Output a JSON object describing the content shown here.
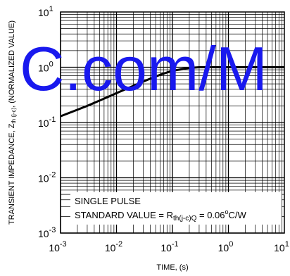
{
  "chart_data": {
    "type": "line",
    "x_scale": "log",
    "y_scale": "log",
    "xlim": [
      0.001,
      10
    ],
    "ylim": [
      0.001,
      10
    ],
    "grid": true,
    "xlabel": "TIME, (s)",
    "ylabel_parts": {
      "prefix": "TRANSIENT  IMPEDANCE, Z",
      "subscript": "th (j-c)",
      "suffix": ", (NORMALIZED VALUE)"
    },
    "x_ticks": [
      {
        "value": 0.001,
        "base": "10",
        "exp": "-3"
      },
      {
        "value": 0.01,
        "base": "10",
        "exp": "-2"
      },
      {
        "value": 0.1,
        "base": "10",
        "exp": "-1"
      },
      {
        "value": 1,
        "base": "10",
        "exp": "0"
      },
      {
        "value": 10,
        "base": "10",
        "exp": "1"
      }
    ],
    "y_ticks": [
      {
        "value": 0.001,
        "base": "10",
        "exp": "-3"
      },
      {
        "value": 0.01,
        "base": "10",
        "exp": "-2"
      },
      {
        "value": 0.1,
        "base": "10",
        "exp": "-1"
      },
      {
        "value": 1,
        "base": "10",
        "exp": "0"
      },
      {
        "value": 10,
        "base": "10",
        "exp": "1"
      }
    ],
    "series": [
      {
        "x": [
          0.001,
          0.002,
          0.003,
          0.005,
          0.007,
          0.01,
          0.02,
          0.03,
          0.05,
          0.07,
          0.1,
          0.2,
          0.3,
          0.5,
          0.7,
          1,
          2,
          5,
          10
        ],
        "y": [
          0.13,
          0.17,
          0.2,
          0.25,
          0.29,
          0.34,
          0.46,
          0.55,
          0.68,
          0.77,
          0.86,
          0.97,
          1.0,
          1.0,
          1.0,
          1.0,
          1.0,
          1.0,
          1.0
        ]
      }
    ],
    "annotations": {
      "line1": "SINGLE PULSE",
      "line2_prefix": "STANDARD VALUE = R",
      "line2_subscript": "th(j-c)Q",
      "line2_suffix": " = 0.06",
      "line2_degree": "o",
      "line2_unit": "C/W"
    }
  },
  "watermark": {
    "text": "C.com/M",
    "color": "#1919ee"
  }
}
